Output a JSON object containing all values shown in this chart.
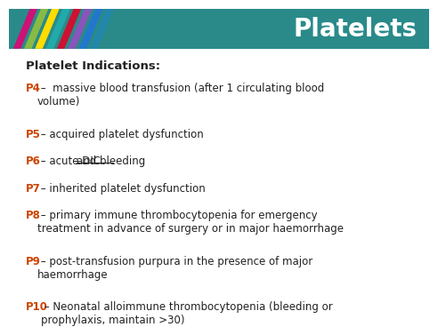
{
  "title": "Platelets",
  "title_bg": "#2a8a8a",
  "title_color": "#ffffff",
  "bg_color": "#ffffff",
  "stripe_colors": [
    "#cc1177",
    "#88bb44",
    "#ffdd00",
    "#22aaaa",
    "#cc1133",
    "#8855bb",
    "#2277cc",
    "#2288aa"
  ],
  "heading": "Platelet Indications:",
  "lines": [
    {
      "label": "P4",
      "pre": " –  massive blood transfusion (after 1 circulating blood\nvolume)",
      "underline_text": "",
      "post": ""
    },
    {
      "label": "P5",
      "pre": " – acquired platelet dysfunction",
      "underline_text": "",
      "post": ""
    },
    {
      "label": "P6",
      "pre": " – acute DIC ",
      "underline_text": "and bleeding",
      "post": ""
    },
    {
      "label": "P7",
      "pre": " – inherited platelet dysfunction",
      "underline_text": "",
      "post": ""
    },
    {
      "label": "P8",
      "pre": " – primary immune thrombocytopenia for emergency\ntreatment in advance of surgery or in major haemorrhage",
      "underline_text": "",
      "post": ""
    },
    {
      "label": "P9",
      "pre": " – post-transfusion purpura in the presence of major\nhaemorrhage",
      "underline_text": "",
      "post": ""
    },
    {
      "label": "P10",
      "pre": " – Neonatal alloimmune thrombocytopenia (bleeding or\nprophylaxis, maintain >30)",
      "underline_text": "",
      "post": ""
    }
  ],
  "label_color": "#cc4400",
  "text_color": "#222222",
  "font_size": 8.5,
  "heading_font_size": 9.5,
  "fig_width": 4.74,
  "fig_height": 3.55
}
